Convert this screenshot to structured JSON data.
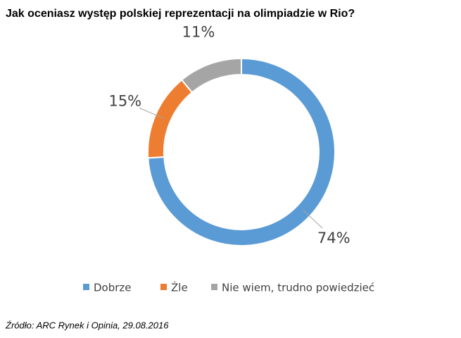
{
  "chart_data": {
    "type": "donut",
    "title": "Jak oceniasz występ polskiej reprezentacji na olimpiadzie w Rio?",
    "categories": [
      "Dobrze",
      "Źle",
      "Nie wiem, trudno powiedzieć"
    ],
    "values": [
      74,
      15,
      11
    ],
    "value_labels": [
      "74%",
      "15%",
      "11%"
    ],
    "colors": [
      "#5b9bd5",
      "#ed7d31",
      "#a5a5a5"
    ],
    "legend": "bottom",
    "source": "Źródło: ARC Rynek i Opinia, 29.08.2016"
  }
}
